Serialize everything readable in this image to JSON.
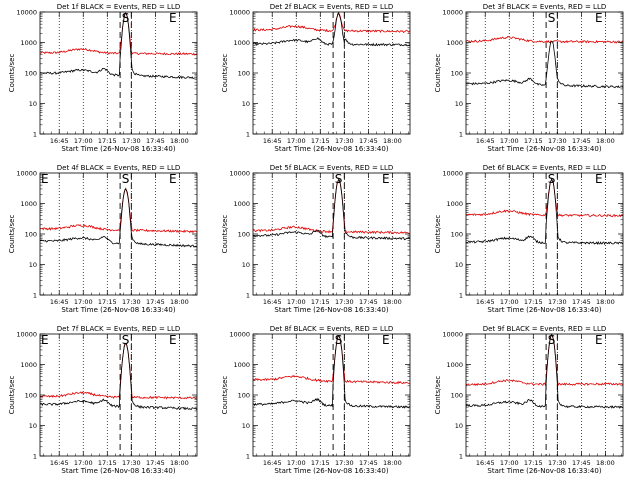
{
  "chart_data": [
    {
      "type": "line",
      "title": "Det 1f BLACK = Events, RED = LLD",
      "events": [
        100,
        70
      ],
      "lld": [
        460,
        420
      ],
      "peak": 9000,
      "lld_peak": true,
      "markers": [
        "",
        "S",
        "E"
      ]
    },
    {
      "type": "line",
      "title": "Det 2f BLACK = Events, RED = LLD",
      "events": [
        900,
        850
      ],
      "lld": [
        2600,
        2300
      ],
      "peak": 9000,
      "lld_peak": true,
      "markers": [
        "",
        "",
        "E"
      ]
    },
    {
      "type": "line",
      "title": "Det 3f BLACK = Events, RED = LLD",
      "events": [
        45,
        35
      ],
      "lld": [
        1100,
        1050
      ],
      "peak": 1100,
      "lld_peak": false,
      "markers": [
        "",
        "S",
        "E"
      ]
    },
    {
      "type": "line",
      "title": "Det 4f BLACK = Events, RED = LLD",
      "events": [
        60,
        40
      ],
      "lld": [
        150,
        120
      ],
      "peak": 3000,
      "lld_peak": true,
      "markers": [
        "E",
        "S",
        "E"
      ]
    },
    {
      "type": "line",
      "title": "Det 5f BLACK = Events, RED = LLD",
      "events": [
        90,
        70
      ],
      "lld": [
        130,
        110
      ],
      "peak": 6000,
      "lld_peak": true,
      "markers": [
        "",
        "S",
        "E"
      ]
    },
    {
      "type": "line",
      "title": "Det 6f BLACK = Events, RED = LLD",
      "events": [
        55,
        50
      ],
      "lld": [
        430,
        400
      ],
      "peak": 6000,
      "lld_peak": true,
      "markers": [
        "",
        "S",
        "E"
      ]
    },
    {
      "type": "line",
      "title": "Det 7f BLACK = Events, RED = LLD",
      "events": [
        50,
        35
      ],
      "lld": [
        90,
        80
      ],
      "peak": 5000,
      "lld_peak": true,
      "markers": [
        "E",
        "S",
        "E"
      ]
    },
    {
      "type": "line",
      "title": "Det 8f BLACK = Events, RED = LLD",
      "events": [
        50,
        40
      ],
      "lld": [
        320,
        250
      ],
      "peak": 9000,
      "lld_peak": true,
      "markers": [
        "",
        "S",
        "E"
      ]
    },
    {
      "type": "line",
      "title": "Det 9f BLACK = Events, RED = LLD",
      "events": [
        45,
        40
      ],
      "lld": [
        220,
        230
      ],
      "peak": 9000,
      "lld_peak": true,
      "markers": [
        "",
        "S",
        "E"
      ]
    }
  ],
  "shared": {
    "xlabel": "Start Time (26-Nov-08 16:33:40)",
    "ylabel": "Counts/sec",
    "x_ticks": [
      "16:45",
      "17:00",
      "17:15",
      "17:30",
      "17:45",
      "18:00"
    ],
    "x_tick_min": [
      12,
      27,
      42,
      57,
      72,
      87
    ],
    "x_range_min": [
      0,
      98
    ],
    "y_ticks": [
      {
        "v": 1,
        "t": "1"
      },
      {
        "v": 10,
        "t": "10"
      },
      {
        "v": 100,
        "t": "100"
      },
      {
        "v": 1000,
        "t": "1000"
      },
      {
        "v": 10000,
        "t": "10000"
      }
    ],
    "y_log": true,
    "y_range": [
      1,
      10000
    ],
    "dotted_lines_min": [
      12,
      27,
      42,
      57,
      72,
      87
    ],
    "dashed_lines_min": [
      50,
      57
    ],
    "colors": {
      "events": "#000000",
      "lld": "#e00000"
    }
  }
}
